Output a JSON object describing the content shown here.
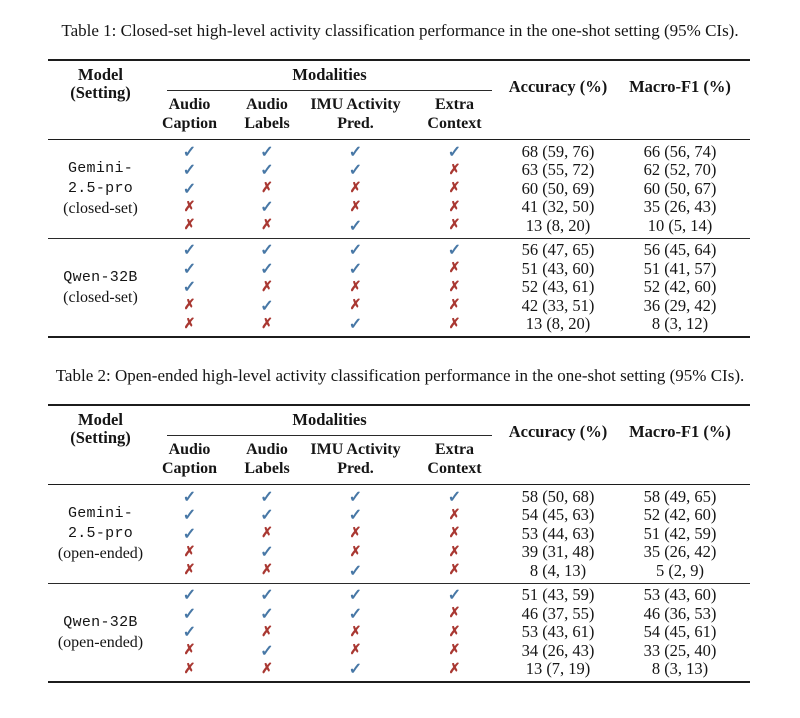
{
  "colors": {
    "check": "#4878a6",
    "cross": "#a93832",
    "rule": "#1c1c1c",
    "text": "#151515"
  },
  "glyphs": {
    "check": "✓",
    "cross": "✗"
  },
  "tables": [
    {
      "caption": "Table 1: Closed-set high-level activity classification performance in the one-shot setting (95% CIs).",
      "header": {
        "model_line1": "Model",
        "model_line2": "(Setting)",
        "modalities": "Modalities",
        "columns": [
          {
            "line1": "Audio",
            "line2": "Caption"
          },
          {
            "line1": "Audio",
            "line2": "Labels"
          },
          {
            "line1": "IMU Activity",
            "line2": "Pred."
          },
          {
            "line1": "Extra",
            "line2": "Context"
          }
        ],
        "accuracy": "Accuracy (%)",
        "macro_f1": "Macro-F1 (%)"
      },
      "groups": [
        {
          "model_lines": [
            "Gemini-",
            "2.5-pro"
          ],
          "setting": "(closed-set)",
          "rows": [
            {
              "marks": [
                "check",
                "check",
                "check",
                "check"
              ],
              "accuracy": "68 (59, 76)",
              "macro_f1": "66 (56, 74)"
            },
            {
              "marks": [
                "check",
                "check",
                "check",
                "cross"
              ],
              "accuracy": "63 (55, 72)",
              "macro_f1": "62 (52, 70)"
            },
            {
              "marks": [
                "check",
                "cross",
                "cross",
                "cross"
              ],
              "accuracy": "60 (50, 69)",
              "macro_f1": "60 (50, 67)"
            },
            {
              "marks": [
                "cross",
                "check",
                "cross",
                "cross"
              ],
              "accuracy": "41 (32, 50)",
              "macro_f1": "35 (26, 43)"
            },
            {
              "marks": [
                "cross",
                "cross",
                "check",
                "cross"
              ],
              "accuracy": "13 (8, 20)",
              "macro_f1": "10 (5, 14)"
            }
          ]
        },
        {
          "model_lines": [
            "Qwen-32B"
          ],
          "setting": "(closed-set)",
          "rows": [
            {
              "marks": [
                "check",
                "check",
                "check",
                "check"
              ],
              "accuracy": "56 (47, 65)",
              "macro_f1": "56 (45, 64)"
            },
            {
              "marks": [
                "check",
                "check",
                "check",
                "cross"
              ],
              "accuracy": "51 (43, 60)",
              "macro_f1": "51 (41, 57)"
            },
            {
              "marks": [
                "check",
                "cross",
                "cross",
                "cross"
              ],
              "accuracy": "52 (43, 61)",
              "macro_f1": "52 (42, 60)"
            },
            {
              "marks": [
                "cross",
                "check",
                "cross",
                "cross"
              ],
              "accuracy": "42 (33, 51)",
              "macro_f1": "36 (29, 42)"
            },
            {
              "marks": [
                "cross",
                "cross",
                "check",
                "cross"
              ],
              "accuracy": "13 (8, 20)",
              "macro_f1": "8 (3, 12)"
            }
          ]
        }
      ]
    },
    {
      "caption": "Table 2: Open-ended high-level activity classification performance in the one-shot setting (95% CIs).",
      "header": {
        "model_line1": "Model",
        "model_line2": "(Setting)",
        "modalities": "Modalities",
        "columns": [
          {
            "line1": "Audio",
            "line2": "Caption"
          },
          {
            "line1": "Audio",
            "line2": "Labels"
          },
          {
            "line1": "IMU Activity",
            "line2": "Pred."
          },
          {
            "line1": "Extra",
            "line2": "Context"
          }
        ],
        "accuracy": "Accuracy (%)",
        "macro_f1": "Macro-F1 (%)"
      },
      "groups": [
        {
          "model_lines": [
            "Gemini-",
            "2.5-pro"
          ],
          "setting": "(open-ended)",
          "rows": [
            {
              "marks": [
                "check",
                "check",
                "check",
                "check"
              ],
              "accuracy": "58 (50, 68)",
              "macro_f1": "58 (49, 65)"
            },
            {
              "marks": [
                "check",
                "check",
                "check",
                "cross"
              ],
              "accuracy": "54 (45, 63)",
              "macro_f1": "52 (42, 60)"
            },
            {
              "marks": [
                "check",
                "cross",
                "cross",
                "cross"
              ],
              "accuracy": "53 (44, 63)",
              "macro_f1": "51 (42, 59)"
            },
            {
              "marks": [
                "cross",
                "check",
                "cross",
                "cross"
              ],
              "accuracy": "39 (31, 48)",
              "macro_f1": "35 (26, 42)"
            },
            {
              "marks": [
                "cross",
                "cross",
                "check",
                "cross"
              ],
              "accuracy": "8 (4, 13)",
              "macro_f1": "5 (2, 9)"
            }
          ]
        },
        {
          "model_lines": [
            "Qwen-32B"
          ],
          "setting": "(open-ended)",
          "rows": [
            {
              "marks": [
                "check",
                "check",
                "check",
                "check"
              ],
              "accuracy": "51 (43, 59)",
              "macro_f1": "53 (43, 60)"
            },
            {
              "marks": [
                "check",
                "check",
                "check",
                "cross"
              ],
              "accuracy": "46 (37, 55)",
              "macro_f1": "46 (36, 53)"
            },
            {
              "marks": [
                "check",
                "cross",
                "cross",
                "cross"
              ],
              "accuracy": "53 (43, 61)",
              "macro_f1": "54 (45, 61)"
            },
            {
              "marks": [
                "cross",
                "check",
                "cross",
                "cross"
              ],
              "accuracy": "34 (26, 43)",
              "macro_f1": "33 (25, 40)"
            },
            {
              "marks": [
                "cross",
                "cross",
                "check",
                "cross"
              ],
              "accuracy": "13 (7, 19)",
              "macro_f1": "8 (3, 13)"
            }
          ]
        }
      ]
    }
  ]
}
